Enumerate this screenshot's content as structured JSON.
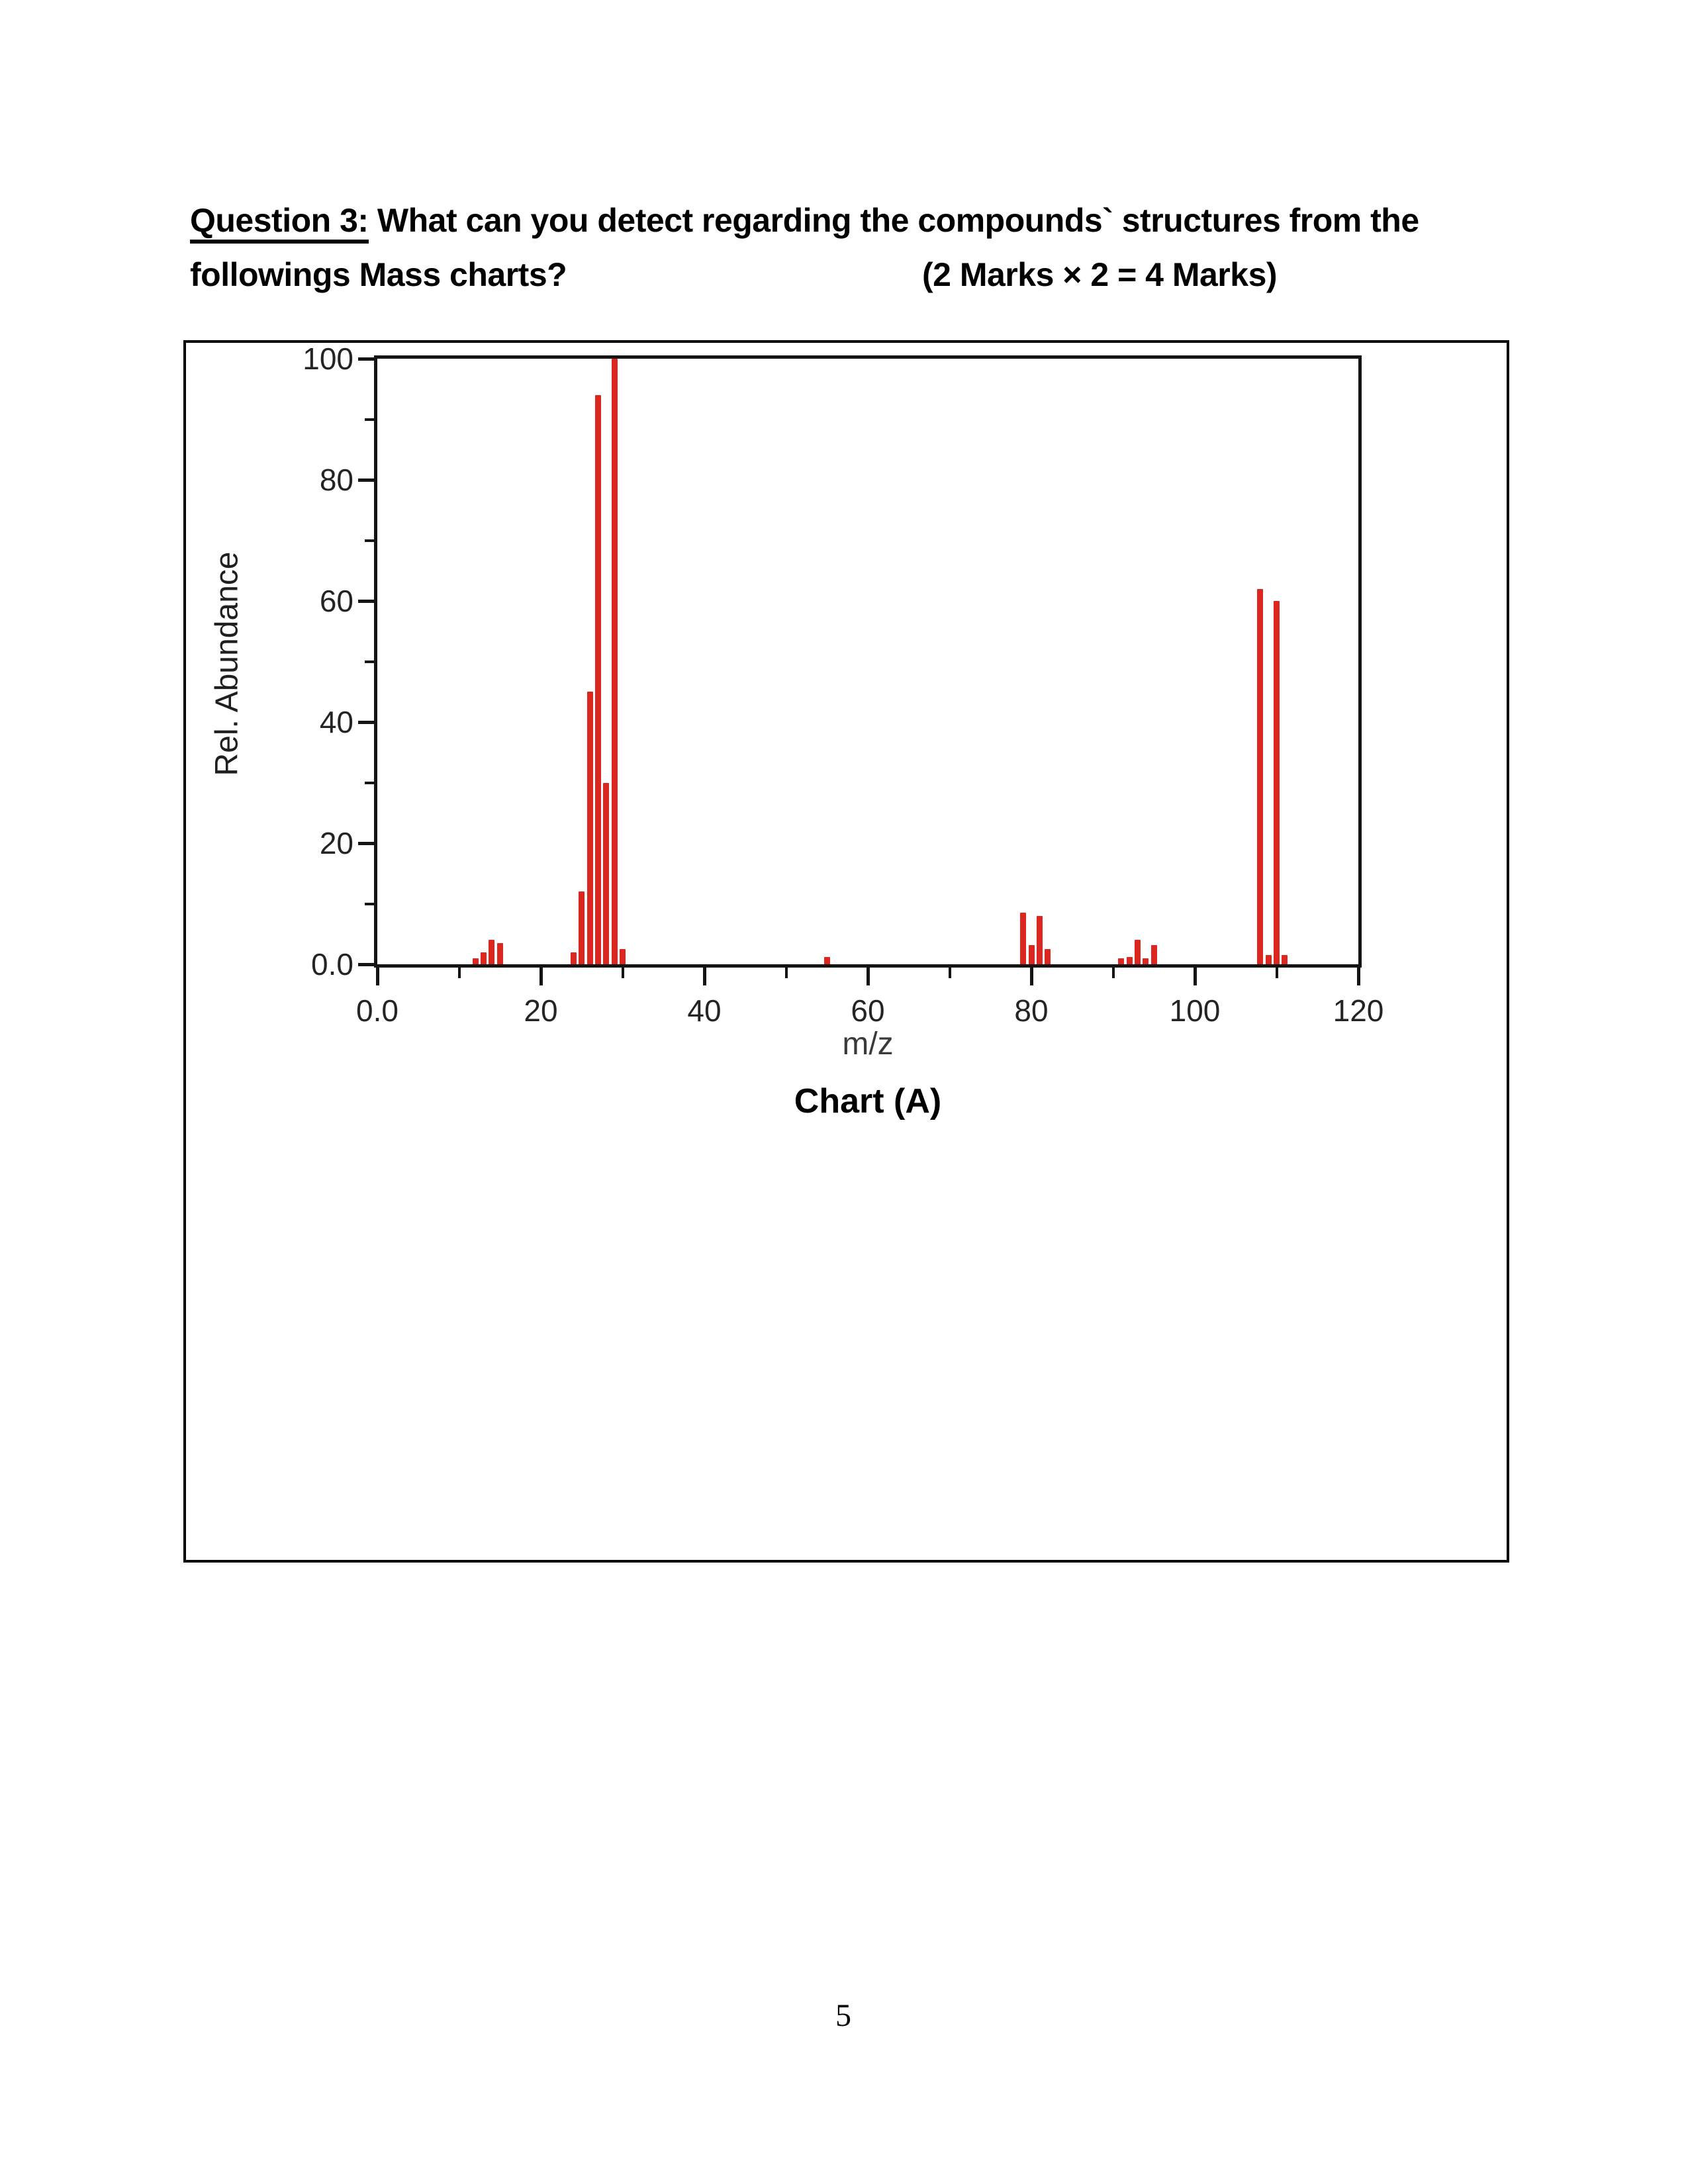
{
  "question": {
    "label": "Question 3:",
    "line1_rest": " What can you detect regarding the compounds` structures from the",
    "line2": "followings Mass charts?",
    "marks": "(2 Marks × 2 = 4 Marks)"
  },
  "figure": {
    "caption": "Chart (A)"
  },
  "chart_data": {
    "type": "bar",
    "title": "Chart (A)",
    "xlabel": "m/z",
    "ylabel": "Rel. Abundance",
    "xlim": [
      0,
      120
    ],
    "ylim": [
      0,
      100
    ],
    "grid": false,
    "legend": "none",
    "bar_color": "#dc2721",
    "axis_color": "#141414",
    "x_major_ticks": [
      0,
      20,
      40,
      60,
      80,
      100,
      120
    ],
    "x_tick_labels": [
      "0.0",
      "20",
      "40",
      "60",
      "80",
      "100",
      "120"
    ],
    "x_minor_ticks": [
      10,
      30,
      50,
      70,
      90,
      110
    ],
    "y_major_ticks": [
      0,
      20,
      40,
      60,
      80,
      100
    ],
    "y_tick_labels": [
      "0.0",
      "20",
      "40",
      "60",
      "80",
      "100"
    ],
    "y_minor_ticks": [
      10,
      30,
      50,
      70,
      90
    ],
    "peaks": [
      [
        12,
        1
      ],
      [
        13,
        2
      ],
      [
        14,
        4
      ],
      [
        15,
        3.5
      ],
      [
        24,
        2
      ],
      [
        25,
        12
      ],
      [
        26,
        45
      ],
      [
        27,
        94
      ],
      [
        28,
        30
      ],
      [
        29,
        100
      ],
      [
        30,
        2.5
      ],
      [
        55,
        1.2
      ],
      [
        79,
        8.5
      ],
      [
        80,
        3.2
      ],
      [
        81,
        8
      ],
      [
        82,
        2.5
      ],
      [
        91,
        1
      ],
      [
        92,
        1.2
      ],
      [
        93,
        4
      ],
      [
        94,
        1
      ],
      [
        95,
        3.2
      ],
      [
        108,
        62
      ],
      [
        109,
        1.5
      ],
      [
        110,
        60
      ],
      [
        111,
        1.5
      ]
    ]
  },
  "page_number": "5"
}
